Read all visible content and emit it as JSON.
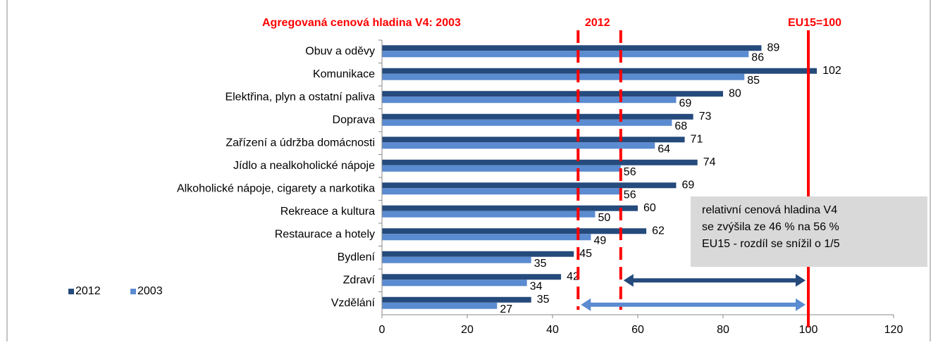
{
  "chart_data": {
    "type": "barh",
    "categories": [
      "Obuv a oděvy",
      "Komunikace",
      "Elektřina, plyn a ostatní paliva",
      "Doprava",
      "Zařízení a údržba domácnosti",
      "Jídlo a nealkoholické nápoje",
      "Alkoholické nápoje, cigarety a narkotika",
      "Rekreace a kultura",
      "Restaurace a hotely",
      "Bydlení",
      "Zdraví",
      "Vzdělání"
    ],
    "series": [
      {
        "name": "2012",
        "color": "#254a7c",
        "values": [
          89,
          102,
          80,
          73,
          71,
          74,
          69,
          60,
          62,
          45,
          42,
          35
        ]
      },
      {
        "name": "2003",
        "color": "#5b8bd0",
        "values": [
          86,
          85,
          69,
          68,
          64,
          56,
          56,
          50,
          49,
          35,
          34,
          27
        ]
      }
    ],
    "xlim": [
      0,
      120
    ],
    "xticks": [
      0,
      20,
      40,
      60,
      80,
      100,
      120
    ],
    "legend": "bottom-left",
    "annotations": {
      "v4_title": "Agregovaná cenová hladina V4: 2003",
      "v4_2012": "2012",
      "eu": "EU15=100",
      "box": [
        "relativní cenová hladina V4",
        "se zvýšila ze 46 % na 56 %",
        "EU15 - rozdíl se snížil o 1/5"
      ]
    },
    "reference_lines": [
      {
        "value": 46,
        "style": "dashed"
      },
      {
        "value": 56,
        "style": "dashed"
      },
      {
        "value": 100,
        "style": "solid"
      }
    ],
    "arrows": [
      {
        "from": 56,
        "to": 100,
        "color": "#254a7c"
      },
      {
        "from": 46,
        "to": 100,
        "color": "#5b8bd0"
      }
    ]
  }
}
